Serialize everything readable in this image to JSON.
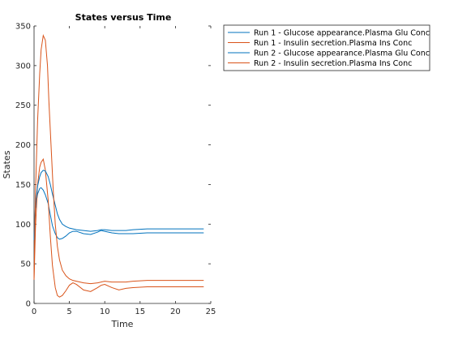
{
  "chart_data": {
    "type": "line",
    "title": "States versus Time",
    "xlabel": "Time",
    "ylabel": "States",
    "xlim": [
      0,
      25
    ],
    "ylim": [
      0,
      350
    ],
    "xticks": [
      "0",
      "5",
      "10",
      "15",
      "20",
      "25"
    ],
    "yticks": [
      "0",
      "50",
      "100",
      "150",
      "200",
      "250",
      "300",
      "350"
    ],
    "grid": false,
    "legend_position": "outside-top-right",
    "series": [
      {
        "name": "Run 1 - Glucose appearance.Plasma Glu Conc",
        "color": "#0072BD",
        "x": [
          0,
          0.2,
          0.5,
          0.8,
          1.0,
          1.3,
          1.6,
          2.0,
          2.3,
          2.6,
          3.0,
          3.3,
          3.6,
          4.0,
          4.5,
          5.0,
          5.5,
          6.0,
          7.0,
          8.0,
          9.0,
          9.5,
          10.0,
          11.0,
          12.0,
          13.0,
          14.0,
          16.0,
          20.0,
          24.0
        ],
        "y": [
          80,
          120,
          138,
          145,
          146,
          143,
          137,
          126,
          112,
          98,
          88,
          83,
          81,
          82,
          85,
          89,
          91,
          91,
          88,
          87,
          90,
          92,
          91,
          89,
          88,
          88,
          88,
          89,
          89,
          89
        ]
      },
      {
        "name": "Run 1 - Insulin secretion.Plasma Ins Conc",
        "color": "#D95319",
        "x": [
          0,
          0.2,
          0.5,
          0.8,
          1.0,
          1.3,
          1.6,
          2.0,
          2.3,
          2.6,
          3.0,
          3.3,
          3.6,
          4.0,
          4.5,
          5.0,
          5.5,
          6.0,
          7.0,
          8.0,
          9.0,
          9.5,
          10.0,
          11.0,
          12.0,
          13.0,
          14.0,
          16.0,
          20.0,
          24.0
        ],
        "y": [
          30,
          95,
          150,
          172,
          178,
          182,
          168,
          130,
          85,
          48,
          20,
          10,
          8,
          10,
          16,
          23,
          26,
          24,
          17,
          15,
          20,
          23,
          24,
          20,
          17,
          19,
          20,
          21,
          21,
          21
        ]
      },
      {
        "name": "Run 2 - Glucose appearance.Plasma Glu Conc",
        "color": "#0072BD",
        "x": [
          0,
          0.2,
          0.5,
          0.8,
          1.0,
          1.3,
          1.6,
          2.0,
          2.3,
          2.6,
          3.0,
          3.3,
          3.6,
          4.0,
          4.5,
          5.0,
          5.5,
          6.0,
          7.0,
          8.0,
          9.0,
          9.5,
          10.0,
          11.0,
          12.0,
          13.0,
          14.0,
          16.0,
          20.0,
          24.0
        ],
        "y": [
          80,
          125,
          148,
          160,
          165,
          168,
          167,
          160,
          150,
          138,
          124,
          113,
          106,
          100,
          97,
          95,
          94,
          93,
          92,
          91,
          92,
          93,
          93,
          92,
          92,
          92,
          93,
          94,
          94,
          94
        ]
      },
      {
        "name": "Run 2 - Insulin secretion.Plasma Ins Conc",
        "color": "#D95319",
        "x": [
          0,
          0.2,
          0.5,
          0.8,
          1.0,
          1.3,
          1.6,
          1.9,
          2.1,
          2.4,
          2.7,
          3.0,
          3.3,
          3.6,
          4.0,
          4.5,
          5.0,
          5.5,
          6.0,
          7.0,
          8.0,
          9.0,
          10.0,
          11.0,
          12.0,
          13.0,
          14.0,
          16.0,
          20.0,
          24.0
        ],
        "y": [
          30,
          140,
          230,
          290,
          320,
          338,
          332,
          300,
          255,
          200,
          145,
          100,
          72,
          55,
          42,
          35,
          31,
          29,
          28,
          26,
          25,
          26,
          28,
          27,
          27,
          27,
          28,
          29,
          29,
          29
        ]
      }
    ]
  }
}
